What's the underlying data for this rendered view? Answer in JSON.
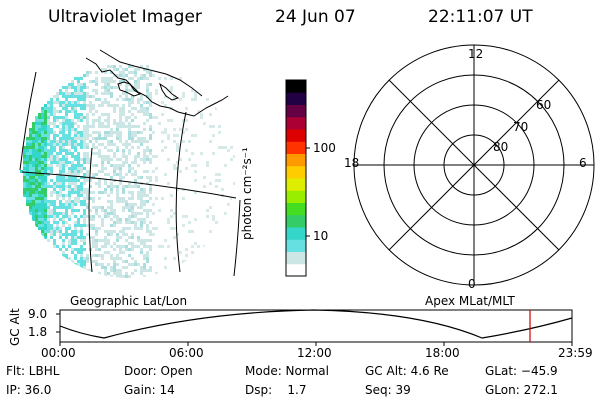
{
  "header": {
    "instrument": "Ultraviolet Imager",
    "date": "24 Jun 07",
    "time": "22:11:07 UT"
  },
  "colorbar": {
    "unit_label": "photon cm⁻²s⁻¹",
    "ticks": [
      "100",
      "10"
    ],
    "colors": [
      "#ffffff",
      "#cce6e6",
      "#66e0e0",
      "#33d6c8",
      "#33cc66",
      "#44dd22",
      "#99ee00",
      "#ddee00",
      "#ffcc00",
      "#ff9900",
      "#ff3300",
      "#dd0000",
      "#aa0033",
      "#660044",
      "#220044",
      "#000000"
    ]
  },
  "geo_panel": {
    "label": "Geographic Lat/Lon"
  },
  "polar_panel": {
    "label": "Apex MLat/MLT",
    "mlt_labels": {
      "top": "12",
      "left": "18",
      "right": "6",
      "bottom": "0"
    },
    "lat_labels": [
      "60",
      "70",
      "80"
    ]
  },
  "altitude_plot": {
    "ylabel": "GC Alt",
    "yticks": [
      "9.0",
      "1.8"
    ],
    "xticks": [
      "00:00",
      "06:00",
      "12:00",
      "18:00",
      "23:59"
    ],
    "current_marker_color": "#cc0000"
  },
  "status": {
    "row1": {
      "flt": "Flt: LBHL",
      "door": "Door: Open",
      "mode": "Mode: Normal",
      "gc_alt": "GC Alt: 4.6 Re",
      "glat": "GLat: −45.9"
    },
    "row2": {
      "ip": "IP: 36.0",
      "gain": "Gain: 14",
      "dsp": "Dsp:    1.7",
      "seq": "Seq: 39",
      "glon": "GLon: 272.1"
    }
  }
}
